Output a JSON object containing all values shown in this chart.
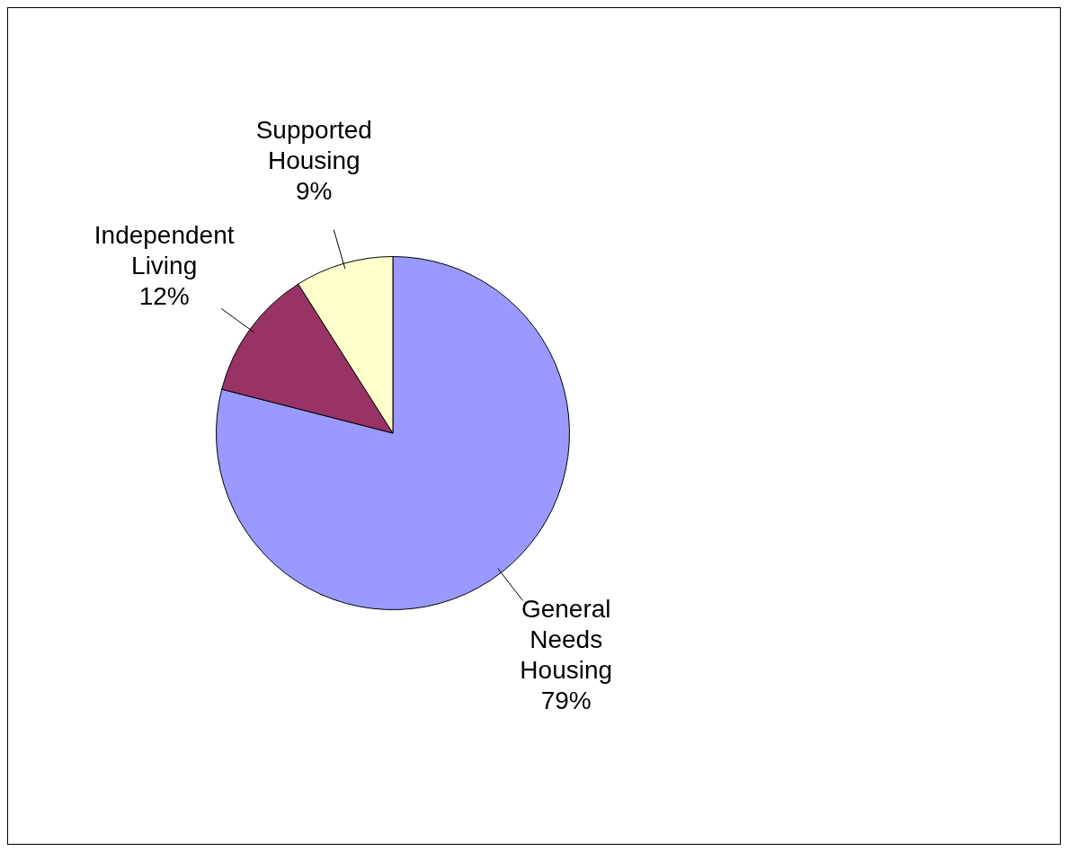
{
  "chart_data": {
    "type": "pie",
    "categories": [
      "General Needs Housing",
      "Independent Living",
      "Supported Housing"
    ],
    "values": [
      79,
      12,
      9
    ],
    "colors": [
      "#9999ff",
      "#993366",
      "#ffffcc"
    ],
    "value_labels": [
      "79%",
      "12%",
      "9%"
    ],
    "legend": false
  }
}
